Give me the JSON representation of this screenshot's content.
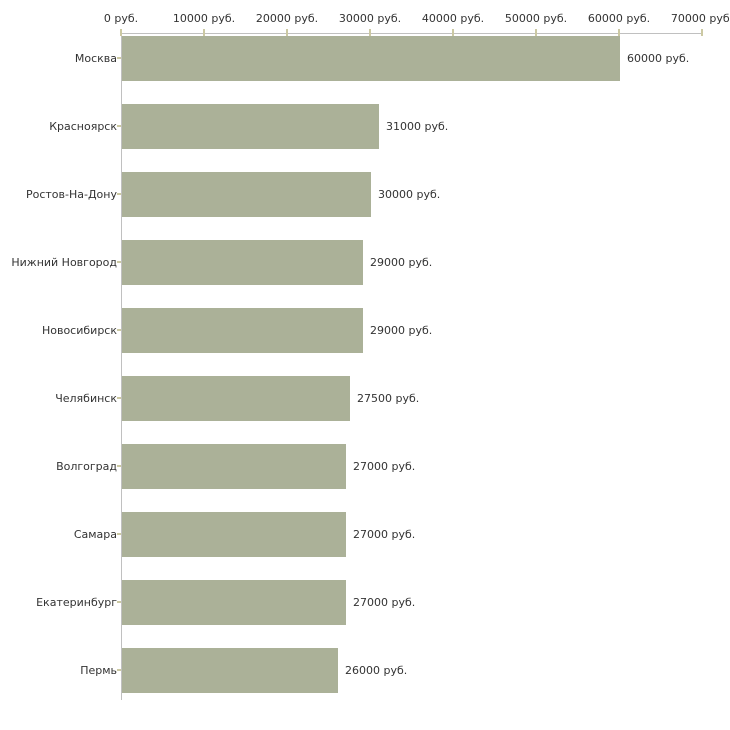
{
  "chart_data": {
    "type": "bar",
    "orientation": "horizontal",
    "title": "",
    "xlabel": "",
    "ylabel": "",
    "unit": "руб.",
    "categories": [
      "Москва",
      "Красноярск",
      "Ростов-На-Дону",
      "Нижний Новгород",
      "Новосибирск",
      "Челябинск",
      "Волгоград",
      "Самара",
      "Екатеринбург",
      "Пермь"
    ],
    "values": [
      60000,
      31000,
      30000,
      29000,
      29000,
      27500,
      27000,
      27000,
      27000,
      26000
    ],
    "value_labels": [
      "60000 руб.",
      "31000 руб.",
      "30000 руб.",
      "29000 руб.",
      "29000 руб.",
      "27500 руб.",
      "27000 руб.",
      "27000 руб.",
      "27000 руб.",
      "26000 руб."
    ],
    "x_axis": {
      "position": "top",
      "min": 0,
      "max": 70000,
      "ticks": [
        0,
        10000,
        20000,
        30000,
        40000,
        50000,
        60000,
        70000
      ],
      "tick_labels": [
        "0 руб.",
        "10000 руб.",
        "20000 руб.",
        "30000 руб.",
        "40000 руб.",
        "50000 руб.",
        "60000 руб.",
        "70000 руб."
      ]
    },
    "grid": false,
    "legend": false,
    "colors": {
      "bar": "#abb198",
      "axis_line": "#c0c0c0",
      "tick_mark": "#ccc9a3",
      "text": "#333333",
      "background": "#ffffff"
    }
  }
}
